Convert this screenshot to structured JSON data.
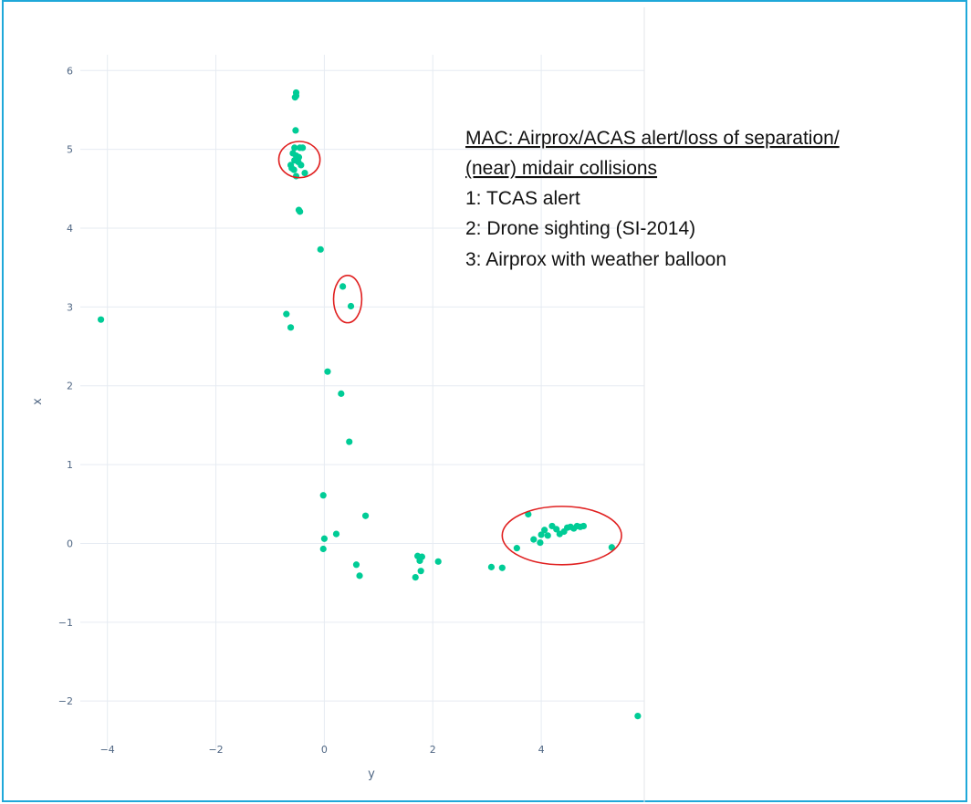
{
  "chart_data": {
    "type": "scatter",
    "xlabel": "y",
    "ylabel": "x",
    "xlim": [
      -4.5,
      5.9
    ],
    "ylim": [
      -2.6,
      6.2
    ],
    "x_ticks": [
      -4,
      -2,
      0,
      2,
      4
    ],
    "y_ticks": [
      -2,
      -1,
      0,
      1,
      2,
      3,
      4,
      5,
      6
    ],
    "x_tick_labels": [
      "−4",
      "−2",
      "0",
      "2",
      "4"
    ],
    "y_tick_labels": [
      "−2",
      "−1",
      "0",
      "1",
      "2",
      "3",
      "4",
      "5",
      "6"
    ],
    "grid": true,
    "colors": {
      "points": "#00cc96",
      "ellipse": "#e02020",
      "grid": "#e6ebf2",
      "frame": "#1fa8d9"
    },
    "points": [
      {
        "x": -4.12,
        "y": 2.84
      },
      {
        "x": -0.52,
        "y": 5.72
      },
      {
        "x": -0.52,
        "y": 5.68
      },
      {
        "x": -0.54,
        "y": 5.66
      },
      {
        "x": -0.53,
        "y": 5.24
      },
      {
        "x": -0.55,
        "y": 5.02
      },
      {
        "x": -0.45,
        "y": 5.02
      },
      {
        "x": -0.4,
        "y": 5.02
      },
      {
        "x": -0.58,
        "y": 4.95
      },
      {
        "x": -0.52,
        "y": 4.92
      },
      {
        "x": -0.47,
        "y": 4.9
      },
      {
        "x": -0.55,
        "y": 4.86
      },
      {
        "x": -0.48,
        "y": 4.84
      },
      {
        "x": -0.62,
        "y": 4.8
      },
      {
        "x": -0.43,
        "y": 4.8
      },
      {
        "x": -0.6,
        "y": 4.76
      },
      {
        "x": -0.56,
        "y": 4.74
      },
      {
        "x": -0.36,
        "y": 4.7
      },
      {
        "x": -0.52,
        "y": 4.66
      },
      {
        "x": -0.47,
        "y": 4.23
      },
      {
        "x": -0.45,
        "y": 4.21
      },
      {
        "x": -0.07,
        "y": 3.73
      },
      {
        "x": 0.34,
        "y": 3.26
      },
      {
        "x": 0.49,
        "y": 3.01
      },
      {
        "x": -0.7,
        "y": 2.91
      },
      {
        "x": -0.62,
        "y": 2.74
      },
      {
        "x": 0.06,
        "y": 2.18
      },
      {
        "x": 0.31,
        "y": 1.9
      },
      {
        "x": 0.46,
        "y": 1.29
      },
      {
        "x": -0.02,
        "y": 0.61
      },
      {
        "x": 0.76,
        "y": 0.35
      },
      {
        "x": 0.22,
        "y": 0.12
      },
      {
        "x": 0.0,
        "y": 0.06
      },
      {
        "x": -0.02,
        "y": -0.07
      },
      {
        "x": 0.59,
        "y": -0.27
      },
      {
        "x": 0.65,
        "y": -0.41
      },
      {
        "x": 1.68,
        "y": -0.43
      },
      {
        "x": 1.78,
        "y": -0.35
      },
      {
        "x": 1.72,
        "y": -0.16
      },
      {
        "x": 1.8,
        "y": -0.17
      },
      {
        "x": 1.76,
        "y": -0.22
      },
      {
        "x": 2.1,
        "y": -0.23
      },
      {
        "x": 3.08,
        "y": -0.3
      },
      {
        "x": 3.28,
        "y": -0.31
      },
      {
        "x": 3.55,
        "y": -0.06
      },
      {
        "x": 3.76,
        "y": 0.37
      },
      {
        "x": 3.86,
        "y": 0.05
      },
      {
        "x": 3.98,
        "y": 0.01
      },
      {
        "x": 4.0,
        "y": 0.11
      },
      {
        "x": 4.06,
        "y": 0.17
      },
      {
        "x": 4.12,
        "y": 0.1
      },
      {
        "x": 4.2,
        "y": 0.22
      },
      {
        "x": 4.28,
        "y": 0.18
      },
      {
        "x": 4.34,
        "y": 0.12
      },
      {
        "x": 4.42,
        "y": 0.15
      },
      {
        "x": 4.48,
        "y": 0.2
      },
      {
        "x": 4.54,
        "y": 0.21
      },
      {
        "x": 4.6,
        "y": 0.19
      },
      {
        "x": 4.66,
        "y": 0.22
      },
      {
        "x": 4.72,
        "y": 0.21
      },
      {
        "x": 4.78,
        "y": 0.22
      },
      {
        "x": 5.3,
        "y": -0.05
      },
      {
        "x": 5.78,
        "y": -2.19
      }
    ],
    "highlight_ellipses": [
      {
        "cx": -0.46,
        "cy": 4.87,
        "rx": 0.38,
        "ry": 0.23
      },
      {
        "cx": 0.43,
        "cy": 3.1,
        "rx": 0.26,
        "ry": 0.3
      },
      {
        "cx": 4.38,
        "cy": 0.1,
        "rx": 1.1,
        "ry": 0.37
      }
    ]
  },
  "annotation": {
    "lines": [
      "MAC: Airprox/ACAS alert/loss of separation/",
      "(near) midair collisions",
      "1:  TCAS alert",
      "2:  Drone sighting (SI-2014)",
      "3:  Airprox with weather balloon"
    ]
  }
}
